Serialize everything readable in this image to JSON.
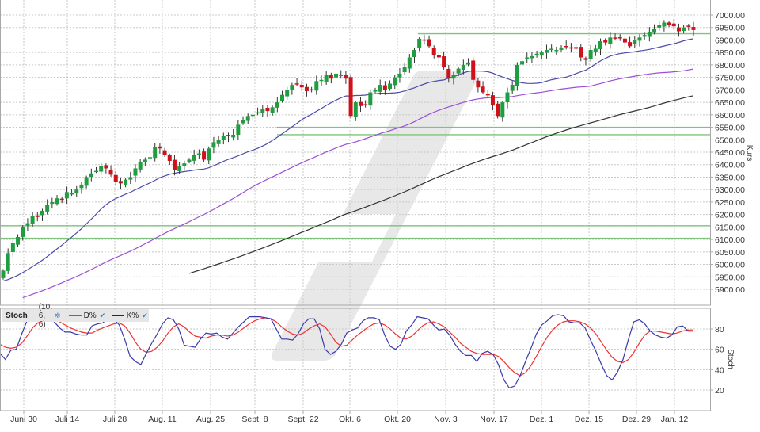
{
  "chart_data": [
    {
      "type": "candlestick",
      "title": "",
      "ylabel": "Kurs",
      "ylim": [
        5850,
        7020
      ],
      "y_ticks": [
        "7000.00",
        "6950.00",
        "6900.00",
        "6850.00",
        "6800.00",
        "6750.00",
        "6700.00",
        "6650.00",
        "6600.00",
        "6550.00",
        "6500.00",
        "6450.00",
        "6400.00",
        "6350.00",
        "6300.00",
        "6250.00",
        "6200.00",
        "6150.00",
        "6100.00",
        "6050.00",
        "6000.00",
        "5950.00",
        "5900.00"
      ],
      "x_ticks": [
        "Juni 30",
        "Juli 14",
        "Juli 28",
        "Aug. 11",
        "Aug. 25",
        "Sept. 8",
        "Sept. 22",
        "Okt. 6",
        "Okt. 20",
        "Nov. 3",
        "Nov. 17",
        "Dez. 1",
        "Dez. 15",
        "Dez. 29",
        "Jan. 12"
      ],
      "grid": true,
      "colors": {
        "up": "#1e9e3e",
        "down": "#d0101a",
        "wick": "#333333",
        "ma_short": "#4b4ba8",
        "ma_mid": "#9b4fd8",
        "ma_long": "#333333",
        "support": "#7cc47c"
      },
      "series": [
        {
          "name": "Kurs (Close, approx.)",
          "values": [
            5975,
            6045,
            6085,
            6110,
            6150,
            6165,
            6195,
            6190,
            6215,
            6240,
            6250,
            6265,
            6260,
            6290,
            6285,
            6300,
            6320,
            6350,
            6365,
            6375,
            6395,
            6385,
            6360,
            6330,
            6325,
            6340,
            6350,
            6385,
            6410,
            6420,
            6430,
            6470,
            6465,
            6440,
            6415,
            6380,
            6395,
            6405,
            6420,
            6440,
            6445,
            6420,
            6465,
            6490,
            6500,
            6515,
            6515,
            6520,
            6560,
            6580,
            6595,
            6600,
            6610,
            6625,
            6615,
            6630,
            6650,
            6680,
            6700,
            6720,
            6725,
            6710,
            6695,
            6700,
            6735,
            6740,
            6760,
            6745,
            6765,
            6760,
            6745,
            6595,
            6650,
            6635,
            6640,
            6690,
            6700,
            6720,
            6700,
            6725,
            6750,
            6765,
            6790,
            6830,
            6860,
            6905,
            6900,
            6875,
            6840,
            6830,
            6790,
            6745,
            6760,
            6785,
            6800,
            6810,
            6740,
            6710,
            6690,
            6680,
            6640,
            6595,
            6650,
            6690,
            6720,
            6800,
            6815,
            6830,
            6835,
            6845,
            6850,
            6860,
            6865,
            6860,
            6870,
            6875,
            6870,
            6865,
            6830,
            6820,
            6860,
            6865,
            6895,
            6890,
            6910,
            6905,
            6910,
            6890,
            6875,
            6900,
            6910,
            6920,
            6930,
            6945,
            6960,
            6970,
            6960,
            6955,
            6935,
            6950,
            6955,
            6940
          ]
        },
        {
          "name": "MA kurz",
          "values_note": "dark blue moving average"
        },
        {
          "name": "MA mittel",
          "values_note": "purple moving average"
        },
        {
          "name": "MA lang",
          "values_note": "black moving average"
        }
      ],
      "horizontal_lines": [
        {
          "value": 6925,
          "from_label": "Okt. 27"
        },
        {
          "value": 6550,
          "from_label": "Sept. 8"
        },
        {
          "value": 6520,
          "from_label": "Sept. 8"
        },
        {
          "value": 6155,
          "from_label": "start"
        },
        {
          "value": 6105,
          "from_label": "start"
        }
      ]
    },
    {
      "type": "line",
      "title": "Stoch",
      "ylabel": "Stoch",
      "ylim": [
        0,
        100
      ],
      "y_ticks": [
        "80",
        "60",
        "40",
        "20"
      ],
      "x_ticks": [
        "Juni 30",
        "Juli 14",
        "Juli 28",
        "Aug. 11",
        "Aug. 25",
        "Sept. 8",
        "Sept. 22",
        "Okt. 6",
        "Okt. 20",
        "Nov. 3",
        "Nov. 17",
        "Dez. 1",
        "Dez. 15",
        "Dez. 29",
        "Jan. 12"
      ],
      "series": [
        {
          "name": "K%",
          "color": "#3a3aaa",
          "values": [
            56,
            50,
            59,
            60,
            75,
            88,
            92,
            91,
            92,
            91,
            87,
            81,
            77,
            77,
            75,
            74,
            74,
            83,
            85,
            86,
            92,
            90,
            84,
            70,
            53,
            48,
            45,
            56,
            66,
            75,
            85,
            91,
            89,
            80,
            64,
            63,
            62,
            70,
            76,
            75,
            76,
            72,
            70,
            76,
            82,
            87,
            92,
            92,
            92,
            91,
            90,
            80,
            70,
            70,
            69,
            75,
            85,
            90,
            90,
            80,
            60,
            55,
            58,
            65,
            76,
            79,
            81,
            88,
            91,
            91,
            89,
            74,
            63,
            60,
            65,
            78,
            84,
            92,
            91,
            90,
            84,
            79,
            80,
            74,
            65,
            58,
            54,
            54,
            48,
            56,
            58,
            55,
            45,
            30,
            22,
            24,
            34,
            48,
            61,
            75,
            84,
            88,
            93,
            94,
            93,
            87,
            86,
            86,
            81,
            69,
            58,
            45,
            34,
            30,
            38,
            50,
            70,
            87,
            89,
            85,
            78,
            74,
            72,
            71,
            74,
            82,
            83,
            78,
            78
          ]
        },
        {
          "name": "D%",
          "color": "#ee3333",
          "values": [
            65,
            62,
            61,
            62,
            66,
            73,
            81,
            86,
            88,
            89,
            89,
            87,
            84,
            81,
            79,
            77,
            76,
            76,
            79,
            81,
            83,
            85,
            86,
            83,
            76,
            67,
            60,
            57,
            58,
            62,
            68,
            76,
            82,
            85,
            82,
            77,
            73,
            72,
            71,
            73,
            74,
            74,
            73,
            74,
            77,
            81,
            85,
            88,
            90,
            91,
            90,
            87,
            82,
            78,
            75,
            74,
            76,
            80,
            83,
            85,
            82,
            75,
            67,
            63,
            64,
            69,
            74,
            78,
            82,
            85,
            86,
            84,
            80,
            75,
            71,
            70,
            73,
            78,
            83,
            86,
            87,
            85,
            82,
            77,
            72,
            66,
            62,
            58,
            56,
            55,
            55,
            55,
            53,
            48,
            42,
            37,
            34,
            37,
            44,
            53,
            63,
            72,
            79,
            84,
            87,
            88,
            88,
            87,
            85,
            81,
            75,
            67,
            59,
            52,
            48,
            47,
            50,
            57,
            66,
            74,
            78,
            78,
            77,
            76,
            75,
            76,
            78,
            79,
            79
          ]
        }
      ],
      "legend": [
        {
          "label": "D%",
          "color": "#ee3333",
          "checked": true
        },
        {
          "label": "K%",
          "color": "#1a1a9a",
          "checked": true
        }
      ]
    }
  ],
  "stoch_panel": {
    "title": "Stoch",
    "params": "(10, 6, 6)",
    "gear_icon": "✲",
    "legend": [
      {
        "label": "D%",
        "color": "#ee3333",
        "check": "✔"
      },
      {
        "label": "K%",
        "color": "#1a1a9a",
        "check": "✔"
      }
    ]
  },
  "axes": {
    "price_axis_label": "Kurs",
    "stoch_axis_label": "Stoch"
  }
}
